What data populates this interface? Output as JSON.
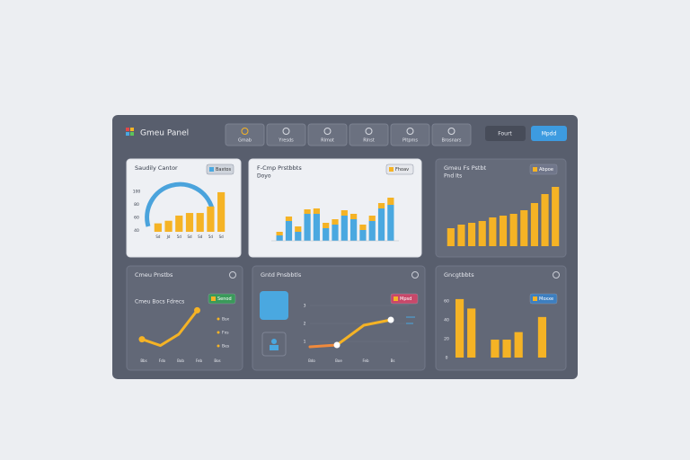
{
  "header": {
    "title": "Gmeu Panel",
    "tabs": [
      "Gmab",
      "Yresds",
      "Rlmot",
      "Rlnst",
      "Pltpms",
      "Brosnars"
    ],
    "buttons": [
      "Fourt",
      "Mpdd"
    ]
  },
  "panels": [
    {
      "title": "Saudily Cantor",
      "badge": "Baxtos",
      "chart": {
        "type": "bar",
        "color": "#f5b325",
        "categories": [
          "Sd",
          "Jd",
          "5d",
          "Sd",
          "Sd",
          "5d",
          "Sd"
        ],
        "values": [
          51,
          55,
          63,
          67,
          67,
          77,
          99
        ],
        "ylim": [
          38,
          110
        ],
        "yticks": [
          40,
          60,
          80,
          100
        ]
      }
    },
    {
      "title": "F-Cmp Prstbbts",
      "subtitle": "Doyo",
      "badge": "Fhoav",
      "chart": {
        "type": "stacked-bar",
        "ylim": [
          0,
          60
        ],
        "series": [
          {
            "color": "#4aa8e0",
            "values": [
              6,
              22,
              10,
              30,
              30,
              14,
              18,
              28,
              24,
              12,
              22,
              36,
              40
            ]
          },
          {
            "color": "#f5b325",
            "values": [
              4,
              5,
              6,
              5,
              6,
              6,
              6,
              6,
              6,
              6,
              6,
              6,
              8
            ]
          }
        ]
      }
    },
    {
      "title": "Gmeu Fs Pstbt",
      "subtitle": "Pnd Its",
      "badge": "Abpoe",
      "chart": {
        "type": "bar",
        "color": "#f5b325",
        "values": [
          20,
          24,
          26,
          28,
          32,
          34,
          36,
          40,
          48,
          58,
          66
        ],
        "ylim": [
          0,
          70
        ]
      }
    },
    {
      "title": "Cmeu Pnstbs",
      "subtitle": "Cmeu Bocs Fdrecs",
      "badge": "Senod",
      "legend": [
        "Bsx",
        "Fxs",
        "Bes"
      ],
      "chart": {
        "type": "line",
        "categories": [
          "Bbs",
          "Fdo",
          "Bob",
          "Feb",
          "Bos"
        ],
        "ylim": [
          0,
          50
        ],
        "series": [
          {
            "color": "#f5b325",
            "values": [
              16,
              11,
              20,
              39,
              null
            ]
          }
        ]
      }
    },
    {
      "title": "Gntd Pnsbbtls",
      "badge": "Mpsd",
      "chart": {
        "type": "line",
        "categories": [
          "Bdo",
          "Boe",
          "Feb",
          "Bs"
        ],
        "ylim": [
          0,
          3.5
        ],
        "yticks": [
          1,
          2,
          3
        ],
        "series": [
          {
            "color": "#f08a3c",
            "values": [
              0.7,
              0.8,
              null,
              null
            ]
          },
          {
            "color": "#f5b325",
            "values": [
              null,
              0.8,
              1.9,
              2.2
            ]
          }
        ]
      }
    },
    {
      "title": "Gncgtbbts",
      "badge": "Moxxe",
      "chart": {
        "type": "bar",
        "color": "#f5b325",
        "values": [
          62,
          52,
          null,
          19,
          19,
          27,
          null,
          43
        ],
        "ylim": [
          0,
          80
        ],
        "yticks": [
          0,
          20,
          40,
          60
        ]
      }
    }
  ]
}
